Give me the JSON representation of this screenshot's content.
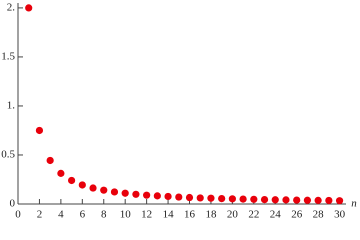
{
  "chart_data": {
    "type": "scatter",
    "x_label": "n",
    "color": "#e8000b",
    "x": [
      1,
      2,
      3,
      4,
      5,
      6,
      7,
      8,
      9,
      10,
      11,
      12,
      13,
      14,
      15,
      16,
      17,
      18,
      19,
      20,
      21,
      22,
      23,
      24,
      25,
      26,
      27,
      28,
      29,
      30
    ],
    "values": [
      2,
      0.75,
      0.444,
      0.3125,
      0.24,
      0.194,
      0.163,
      0.141,
      0.123,
      0.11,
      0.099,
      0.09,
      0.083,
      0.077,
      0.071,
      0.066,
      0.062,
      0.059,
      0.055,
      0.0525,
      0.05,
      0.048,
      0.045,
      0.043,
      0.042,
      0.04,
      0.038,
      0.037,
      0.036,
      0.034
    ],
    "xlim": [
      0,
      30.6
    ],
    "ylim": [
      0,
      2.05
    ],
    "xticks": [
      0,
      2,
      4,
      6,
      8,
      10,
      12,
      14,
      16,
      18,
      20,
      22,
      24,
      26,
      28,
      30
    ],
    "yticks": [
      0,
      0.5,
      {
        "value": 1,
        "label": "1."
      },
      1.5,
      {
        "value": 2,
        "label": "2."
      }
    ]
  }
}
